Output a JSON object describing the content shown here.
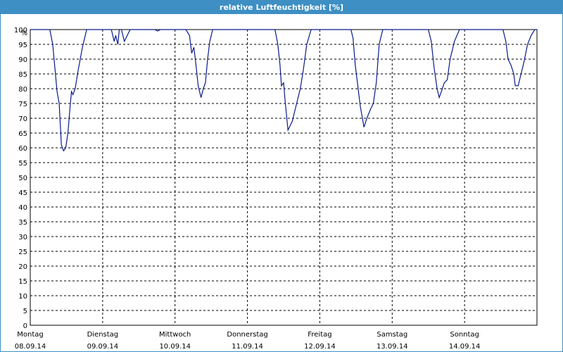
{
  "window": {
    "title": "relative Luftfeuchtigkeit [%]"
  },
  "colors": {
    "titlebar": "#3d8fc4",
    "line": "#0a1a8c",
    "grid": "#000000"
  },
  "chart_data": {
    "type": "line",
    "title": "relative Luftfeuchtigkeit [%]",
    "ylabel": "%",
    "xlabel": "",
    "ylim": [
      0,
      100
    ],
    "yticks": [
      0,
      5,
      10,
      15,
      20,
      25,
      30,
      35,
      40,
      45,
      50,
      55,
      60,
      65,
      70,
      75,
      80,
      85,
      90,
      95,
      100
    ],
    "xlim": [
      0,
      7
    ],
    "grid": true,
    "days": [
      {
        "x": 0,
        "weekday": "Montag",
        "date": "08.09.14"
      },
      {
        "x": 1,
        "weekday": "Dienstag",
        "date": "09.09.14"
      },
      {
        "x": 2,
        "weekday": "Mittwoch",
        "date": "10.09.14"
      },
      {
        "x": 3,
        "weekday": "Donnerstag",
        "date": "11.09.14"
      },
      {
        "x": 4,
        "weekday": "Freitag",
        "date": "12.09.14"
      },
      {
        "x": 5,
        "weekday": "Samstag",
        "date": "13.09.14"
      },
      {
        "x": 6,
        "weekday": "Sonntag",
        "date": "14.09.14"
      }
    ],
    "series": [
      {
        "values": [
          [
            0.0,
            100
          ],
          [
            0.27,
            100
          ],
          [
            0.31,
            95
          ],
          [
            0.34,
            87
          ],
          [
            0.37,
            79
          ],
          [
            0.4,
            75
          ],
          [
            0.43,
            61
          ],
          [
            0.46,
            59
          ],
          [
            0.49,
            60
          ],
          [
            0.52,
            65
          ],
          [
            0.55,
            74
          ],
          [
            0.57,
            79
          ],
          [
            0.59,
            78
          ],
          [
            0.62,
            80
          ],
          [
            0.66,
            86
          ],
          [
            0.72,
            94
          ],
          [
            0.78,
            100
          ],
          [
            1.0,
            100
          ],
          [
            1.12,
            100
          ],
          [
            1.16,
            96
          ],
          [
            1.18,
            98
          ],
          [
            1.21,
            95
          ],
          [
            1.23,
            100
          ],
          [
            1.26,
            100
          ],
          [
            1.3,
            96
          ],
          [
            1.34,
            98
          ],
          [
            1.38,
            100
          ],
          [
            1.6,
            100
          ],
          [
            1.72,
            100
          ],
          [
            1.76,
            99.5
          ],
          [
            1.8,
            100
          ],
          [
            2.0,
            100
          ],
          [
            2.15,
            100
          ],
          [
            2.2,
            98
          ],
          [
            2.23,
            92
          ],
          [
            2.26,
            94
          ],
          [
            2.29,
            88
          ],
          [
            2.32,
            81
          ],
          [
            2.36,
            77
          ],
          [
            2.39,
            80
          ],
          [
            2.42,
            82
          ],
          [
            2.45,
            90
          ],
          [
            2.48,
            96
          ],
          [
            2.52,
            100
          ],
          [
            3.0,
            100
          ],
          [
            3.38,
            100
          ],
          [
            3.42,
            95
          ],
          [
            3.45,
            88
          ],
          [
            3.47,
            81
          ],
          [
            3.5,
            82
          ],
          [
            3.52,
            76
          ],
          [
            3.56,
            66
          ],
          [
            3.62,
            69
          ],
          [
            3.68,
            75
          ],
          [
            3.73,
            80
          ],
          [
            3.77,
            86
          ],
          [
            3.82,
            95
          ],
          [
            3.88,
            100
          ],
          [
            4.0,
            100
          ],
          [
            4.43,
            100
          ],
          [
            4.46,
            97
          ],
          [
            4.49,
            88
          ],
          [
            4.52,
            82
          ],
          [
            4.56,
            74
          ],
          [
            4.61,
            67
          ],
          [
            4.65,
            70
          ],
          [
            4.7,
            73
          ],
          [
            4.74,
            75
          ],
          [
            4.78,
            82
          ],
          [
            4.82,
            95
          ],
          [
            4.87,
            100
          ],
          [
            5.0,
            100
          ],
          [
            5.5,
            100
          ],
          [
            5.54,
            96
          ],
          [
            5.58,
            87
          ],
          [
            5.62,
            80
          ],
          [
            5.65,
            77
          ],
          [
            5.68,
            79
          ],
          [
            5.72,
            82
          ],
          [
            5.76,
            83
          ],
          [
            5.8,
            90
          ],
          [
            5.86,
            96
          ],
          [
            5.93,
            100
          ],
          [
            6.0,
            100
          ],
          [
            6.53,
            100
          ],
          [
            6.57,
            96
          ],
          [
            6.6,
            90
          ],
          [
            6.64,
            88
          ],
          [
            6.68,
            85
          ],
          [
            6.7,
            81
          ],
          [
            6.74,
            81
          ],
          [
            6.78,
            85
          ],
          [
            6.82,
            89
          ],
          [
            6.87,
            95
          ],
          [
            6.92,
            98
          ],
          [
            6.97,
            100
          ],
          [
            7.0,
            100
          ]
        ]
      }
    ]
  }
}
